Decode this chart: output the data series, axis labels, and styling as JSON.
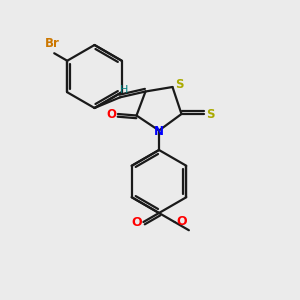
{
  "background_color": "#ebebeb",
  "bond_color": "#1a1a1a",
  "br_color": "#cc7700",
  "s_color": "#aaaa00",
  "n_color": "#0000ff",
  "o_color": "#ff0000",
  "h_color": "#008080",
  "lw": 1.6,
  "bromine_label": "Br",
  "s_label_ring": "S",
  "s_label_exo": "S",
  "n_label": "N",
  "o_label_co": "O",
  "o_label_ester_co": "O",
  "o_label_ester_o": "O",
  "h_label": "H"
}
